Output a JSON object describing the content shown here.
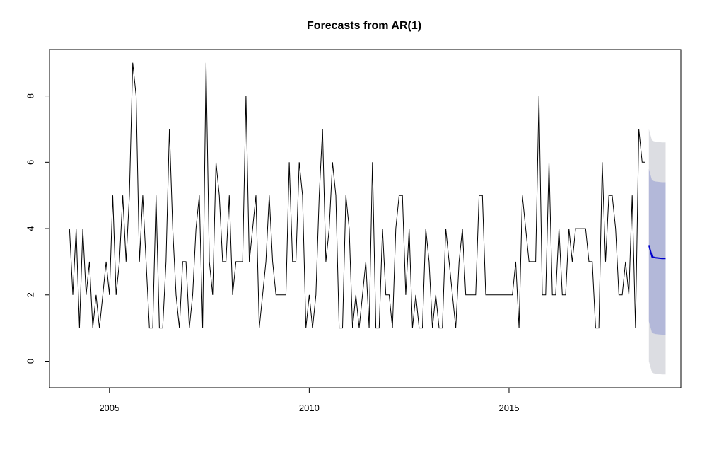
{
  "chart_data": {
    "type": "line",
    "title": "Forecasts from AR(1)",
    "xlabel": "",
    "ylabel": "",
    "xlim": [
      2003.5,
      2019.3
    ],
    "ylim": [
      -0.8,
      9.4
    ],
    "x_ticks": [
      2005,
      2010,
      2015
    ],
    "y_ticks": [
      0,
      2,
      4,
      6,
      8
    ],
    "grid": false,
    "series": [
      {
        "type": "observed",
        "color": "#000000",
        "x_start": 2004.0,
        "x_step": 0.08333,
        "values": [
          4,
          2,
          4,
          1,
          4,
          2,
          3,
          1,
          2,
          1,
          2,
          3,
          2,
          5,
          2,
          3,
          5,
          3,
          5,
          9,
          8,
          3,
          5,
          3,
          1,
          1,
          5,
          1,
          1,
          3,
          7,
          4,
          2,
          1,
          3,
          3,
          1,
          2,
          4,
          5,
          1,
          9,
          3,
          2,
          6,
          5,
          3,
          3,
          5,
          2,
          3,
          3,
          3,
          8,
          3,
          4,
          5,
          1,
          2,
          3,
          5,
          3,
          2,
          2,
          2,
          2,
          6,
          3,
          3,
          6,
          5,
          1,
          2,
          1,
          2,
          5,
          7,
          3,
          4,
          6,
          5,
          1,
          1,
          5,
          4,
          1,
          2,
          1,
          2,
          3,
          1,
          6,
          1,
          1,
          4,
          2,
          2,
          1,
          4,
          5,
          5,
          2,
          4,
          1,
          2,
          1,
          1,
          4,
          3,
          1,
          2,
          1,
          1,
          4,
          3,
          2,
          1,
          3,
          4,
          2,
          2,
          2,
          2,
          5,
          5,
          2,
          2,
          2,
          2,
          2,
          2,
          2,
          2,
          2,
          3,
          1,
          5,
          4,
          3,
          3,
          3,
          8,
          2,
          2,
          6,
          2,
          2,
          4,
          2,
          2,
          4,
          3,
          4,
          4,
          4,
          4,
          3,
          3,
          1,
          1,
          6,
          3,
          5,
          5,
          4,
          2,
          2,
          3,
          2,
          5,
          1,
          7,
          6,
          6
        ]
      },
      {
        "type": "forecast",
        "color": "#0000cc",
        "x": [
          2018.5,
          2018.58,
          2018.67,
          2018.75,
          2018.83,
          2018.92
        ],
        "values": [
          3.5,
          3.15,
          3.12,
          3.11,
          3.1,
          3.1
        ],
        "lo80": [
          1.2,
          0.85,
          0.82,
          0.81,
          0.8,
          0.8
        ],
        "hi80": [
          5.8,
          5.45,
          5.42,
          5.41,
          5.4,
          5.4
        ],
        "lo95": [
          0.0,
          -0.35,
          -0.38,
          -0.39,
          -0.4,
          -0.4
        ],
        "hi95": [
          7.0,
          6.65,
          6.62,
          6.61,
          6.6,
          6.6
        ],
        "band80_color": "#b3b8d9",
        "band95_color": "#dcdde2"
      }
    ]
  }
}
